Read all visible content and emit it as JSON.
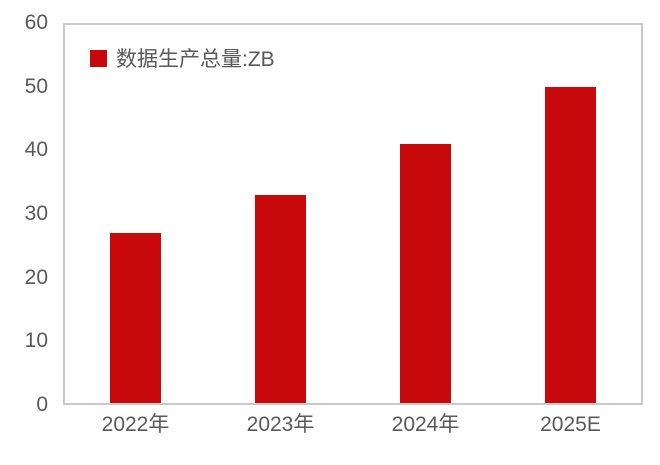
{
  "chart_data": {
    "type": "bar",
    "categories": [
      "2022年",
      "2023年",
      "2024年",
      "2025E"
    ],
    "values": [
      27,
      33,
      41,
      50
    ],
    "series": [
      {
        "name": "数据生产总量:ZB",
        "values": [
          27,
          33,
          41,
          50
        ]
      }
    ],
    "title": "",
    "xlabel": "",
    "ylabel": "",
    "ylim": [
      0,
      60
    ],
    "ytick_step": 10,
    "ytick_labels": [
      "0",
      "10",
      "20",
      "30",
      "40",
      "50",
      "60"
    ],
    "grid": false,
    "legend_position": "top-left",
    "bar_color": "#c8090c",
    "axis_border_color": "#c9c9c9",
    "text_color": "#595959",
    "background_color": "#ffffff"
  },
  "legend": {
    "label": "数据生产总量:ZB",
    "swatch_color": "#c8090c"
  }
}
